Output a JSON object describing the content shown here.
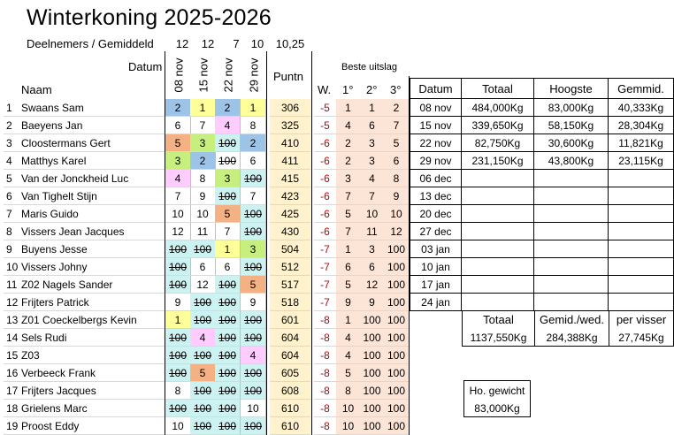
{
  "title": "Winterkoning 2025-2026",
  "subtitle": "Deelnemers / Gemiddeld",
  "averages": [
    "12",
    "12",
    "7",
    "10",
    "10,25"
  ],
  "labels": {
    "datum": "Datum",
    "naam": "Naam",
    "puntn": "Puntn",
    "beste": "Beste uitslag",
    "w": "W.",
    "b1": "1°",
    "b2": "2°",
    "b3": "3°"
  },
  "dates": [
    "08 nov",
    "15 nov",
    "22 nov",
    "29 nov"
  ],
  "colors": {
    "blue": "#9dc3e6",
    "yellow": "#ffff99",
    "pink": "#ffccff",
    "green": "#c6ef7e",
    "orange": "#f4b183",
    "cyan": "#ccf2f2",
    "points_bg": "#fff2cc",
    "peach": "#fce4d6",
    "mint": "#e2f0d9",
    "minus_red": "#c00000"
  },
  "rows": [
    {
      "nr": "1",
      "name": "Swaans Sam",
      "r": [
        {
          "v": "2",
          "c": "blue"
        },
        {
          "v": "1",
          "c": "yellow"
        },
        {
          "v": "2",
          "c": "blue"
        },
        {
          "v": "1",
          "c": "yellow"
        }
      ],
      "p": "306",
      "w": "-5",
      "b": [
        "1",
        "1",
        "2"
      ]
    },
    {
      "nr": "2",
      "name": "Baeyens Jan",
      "r": [
        {
          "v": "6"
        },
        {
          "v": "7"
        },
        {
          "v": "4",
          "c": "pink"
        },
        {
          "v": "8"
        }
      ],
      "p": "325",
      "w": "-5",
      "b": [
        "4",
        "6",
        "7"
      ]
    },
    {
      "nr": "3",
      "name": "Cloostermans Gert",
      "r": [
        {
          "v": "5",
          "c": "orange"
        },
        {
          "v": "3",
          "c": "green"
        },
        {
          "v": "100",
          "c": "cyan",
          "s": true
        },
        {
          "v": "2",
          "c": "blue"
        }
      ],
      "p": "410",
      "w": "-6",
      "b": [
        "2",
        "3",
        "5"
      ]
    },
    {
      "nr": "4",
      "name": "Matthys Karel",
      "r": [
        {
          "v": "3",
          "c": "green"
        },
        {
          "v": "2",
          "c": "blue"
        },
        {
          "v": "100",
          "s": true
        },
        {
          "v": "6"
        }
      ],
      "p": "411",
      "w": "-6",
      "b": [
        "2",
        "3",
        "6"
      ]
    },
    {
      "nr": "5",
      "name": "Van der Jonckheid  Luc",
      "r": [
        {
          "v": "4",
          "c": "pink"
        },
        {
          "v": "8"
        },
        {
          "v": "3",
          "c": "green"
        },
        {
          "v": "100",
          "c": "cyan",
          "s": true
        }
      ],
      "p": "415",
      "w": "-6",
      "b": [
        "3",
        "4",
        "8"
      ]
    },
    {
      "nr": "6",
      "name": "Van Tighelt Stijn",
      "r": [
        {
          "v": "7"
        },
        {
          "v": "9"
        },
        {
          "v": "100",
          "c": "cyan",
          "s": true
        },
        {
          "v": "7"
        }
      ],
      "p": "423",
      "w": "-6",
      "b": [
        "7",
        "7",
        "9"
      ]
    },
    {
      "nr": "7",
      "name": "Maris Guido",
      "r": [
        {
          "v": "10"
        },
        {
          "v": "10"
        },
        {
          "v": "5",
          "c": "orange"
        },
        {
          "v": "100",
          "c": "cyan",
          "s": true
        }
      ],
      "p": "425",
      "w": "-6",
      "b": [
        "5",
        "10",
        "10"
      ]
    },
    {
      "nr": "8",
      "name": "Vissers Jean Jacques",
      "r": [
        {
          "v": "12"
        },
        {
          "v": "11"
        },
        {
          "v": "7"
        },
        {
          "v": "100",
          "c": "cyan",
          "s": true
        }
      ],
      "p": "430",
      "w": "-6",
      "b": [
        "7",
        "11",
        "12"
      ]
    },
    {
      "nr": "9",
      "name": "Buyens Jesse",
      "r": [
        {
          "v": "100",
          "c": "cyan",
          "s": true
        },
        {
          "v": "100",
          "c": "cyan",
          "s": true
        },
        {
          "v": "1",
          "c": "yellow"
        },
        {
          "v": "3",
          "c": "green"
        }
      ],
      "p": "504",
      "w": "-7",
      "b": [
        "1",
        "3",
        "100"
      ]
    },
    {
      "nr": "10",
      "name": "Vissers Johny",
      "r": [
        {
          "v": "100",
          "c": "cyan",
          "s": true
        },
        {
          "v": "6"
        },
        {
          "v": "6"
        },
        {
          "v": "100",
          "c": "cyan",
          "s": true
        }
      ],
      "p": "512",
      "w": "-7",
      "b": [
        "6",
        "6",
        "100"
      ]
    },
    {
      "nr": "11",
      "name": "Z02 Nagels Sander",
      "r": [
        {
          "v": "100",
          "c": "cyan",
          "s": true
        },
        {
          "v": "12"
        },
        {
          "v": "100",
          "c": "cyan",
          "s": true
        },
        {
          "v": "5",
          "c": "orange"
        }
      ],
      "p": "517",
      "w": "-7",
      "b": [
        "5",
        "12",
        "100"
      ]
    },
    {
      "nr": "12",
      "name": "Frijters Patrick",
      "r": [
        {
          "v": "9"
        },
        {
          "v": "100",
          "c": "cyan",
          "s": true
        },
        {
          "v": "100",
          "c": "cyan",
          "s": true
        },
        {
          "v": "9"
        }
      ],
      "p": "518",
      "w": "-7",
      "b": [
        "9",
        "9",
        "100"
      ]
    },
    {
      "nr": "13",
      "name": "Z01 Coeckelbergs Kevin",
      "r": [
        {
          "v": "1",
          "c": "yellow"
        },
        {
          "v": "100",
          "c": "cyan",
          "s": true
        },
        {
          "v": "100",
          "c": "cyan",
          "s": true
        },
        {
          "v": "100",
          "c": "cyan",
          "s": true
        }
      ],
      "p": "601",
      "w": "-8",
      "b": [
        "1",
        "100",
        "100"
      ]
    },
    {
      "nr": "14",
      "name": "Sels Rudi",
      "r": [
        {
          "v": "100",
          "c": "cyan",
          "s": true
        },
        {
          "v": "4",
          "c": "pink"
        },
        {
          "v": "100",
          "c": "cyan",
          "s": true
        },
        {
          "v": "100",
          "c": "cyan",
          "s": true
        }
      ],
      "p": "604",
      "w": "-8",
      "b": [
        "4",
        "100",
        "100"
      ]
    },
    {
      "nr": "15",
      "name": "Z03",
      "r": [
        {
          "v": "100",
          "c": "cyan",
          "s": true
        },
        {
          "v": "100",
          "c": "cyan",
          "s": true
        },
        {
          "v": "100",
          "c": "cyan",
          "s": true
        },
        {
          "v": "4",
          "c": "pink"
        }
      ],
      "p": "604",
      "w": "-8",
      "b": [
        "4",
        "100",
        "100"
      ]
    },
    {
      "nr": "16",
      "name": "Verbeeck Frank",
      "r": [
        {
          "v": "100",
          "c": "cyan",
          "s": true
        },
        {
          "v": "5",
          "c": "orange"
        },
        {
          "v": "100",
          "c": "cyan",
          "s": true
        },
        {
          "v": "100",
          "c": "cyan",
          "s": true
        }
      ],
      "p": "605",
      "w": "-8",
      "b": [
        "5",
        "100",
        "100"
      ]
    },
    {
      "nr": "17",
      "name": "Frijters Jacques",
      "r": [
        {
          "v": "8"
        },
        {
          "v": "100",
          "c": "cyan",
          "s": true
        },
        {
          "v": "100",
          "c": "cyan",
          "s": true
        },
        {
          "v": "100",
          "c": "cyan",
          "s": true
        }
      ],
      "p": "608",
      "w": "-8",
      "b": [
        "8",
        "100",
        "100"
      ]
    },
    {
      "nr": "18",
      "name": "Grielens Marc",
      "r": [
        {
          "v": "100",
          "c": "cyan",
          "s": true
        },
        {
          "v": "100",
          "c": "cyan",
          "s": true
        },
        {
          "v": "100",
          "c": "cyan",
          "s": true
        },
        {
          "v": "10"
        }
      ],
      "p": "610",
      "w": "-8",
      "b": [
        "10",
        "100",
        "100"
      ]
    },
    {
      "nr": "19",
      "name": "Proost Eddy",
      "r": [
        {
          "v": "10"
        },
        {
          "v": "100",
          "c": "cyan",
          "s": true
        },
        {
          "v": "100",
          "c": "cyan",
          "s": true
        },
        {
          "v": "100",
          "c": "cyan",
          "s": true
        }
      ],
      "p": "610",
      "w": "-8",
      "b": [
        "10",
        "100",
        "100"
      ]
    }
  ],
  "summary": {
    "headers": [
      "Datum",
      "Totaal",
      "Hoogste",
      "Gemmid."
    ],
    "rows": [
      [
        "08 nov",
        "484,000Kg",
        "83,000Kg",
        "40,333Kg"
      ],
      [
        "15 nov",
        "339,650Kg",
        "58,150Kg",
        "28,304Kg"
      ],
      [
        "22 nov",
        "82,750Kg",
        "30,600Kg",
        "11,821Kg"
      ],
      [
        "29 nov",
        "231,150Kg",
        "43,800Kg",
        "23,115Kg"
      ],
      [
        "06 dec",
        "",
        "",
        ""
      ],
      [
        "13 dec",
        "",
        "",
        ""
      ],
      [
        "20 dec",
        "",
        "",
        ""
      ],
      [
        "27 dec",
        "",
        "",
        ""
      ],
      [
        "03 jan",
        "",
        "",
        ""
      ],
      [
        "10 jan",
        "",
        "",
        ""
      ],
      [
        "17 jan",
        "",
        "",
        ""
      ],
      [
        "24 jan",
        "",
        "",
        ""
      ]
    ]
  },
  "totals": {
    "headers": [
      "Totaal",
      "Gemid./wed.",
      "per visser"
    ],
    "values": [
      "1137,550Kg",
      "284,388Kg",
      "27,745Kg"
    ]
  },
  "heaviest": {
    "label": "Ho. gewicht",
    "value": "83,000Kg"
  }
}
